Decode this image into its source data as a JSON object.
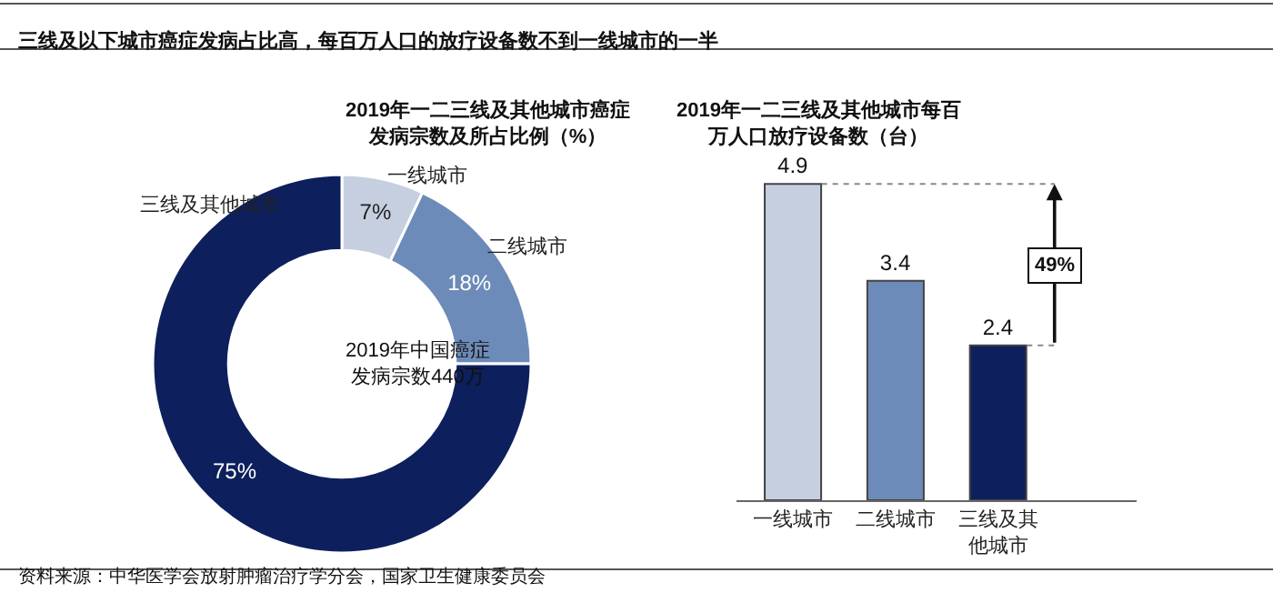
{
  "chart_data": [
    {
      "type": "donut",
      "title": "2019年一二三线及其他城市癌症发病宗数及所占比例（%）",
      "categories": [
        "一线城市",
        "二线城市",
        "三线及其他城市"
      ],
      "values": [
        7,
        18,
        75
      ],
      "colors": [
        "#c5cfe0",
        "#6d8bb8",
        "#0d1f5c"
      ],
      "value_labels": [
        "7%",
        "18%",
        "75%"
      ],
      "annotations": [
        "三线及以下城市癌症发病占比高，每百万人口的放疗设备数不到一线城市的一半",
        "2019年中国癌症发病宗数440万",
        "资料来源：中华医学会放射肿瘤治疗学分会，国家卫生健康委员会"
      ]
    },
    {
      "type": "bar",
      "title": "2019年一二三线及其他城市每百万人口放疗设备数（台）",
      "categories": [
        "一线城市",
        "二线城市",
        "三线及其他城市"
      ],
      "values": [
        4.9,
        3.4,
        2.4
      ],
      "colors": [
        "#c5cfe0",
        "#6d8bb8",
        "#0d1f5c"
      ],
      "data_labels": true,
      "tick_labels": "x",
      "annotations": [
        "49%"
      ]
    }
  ]
}
